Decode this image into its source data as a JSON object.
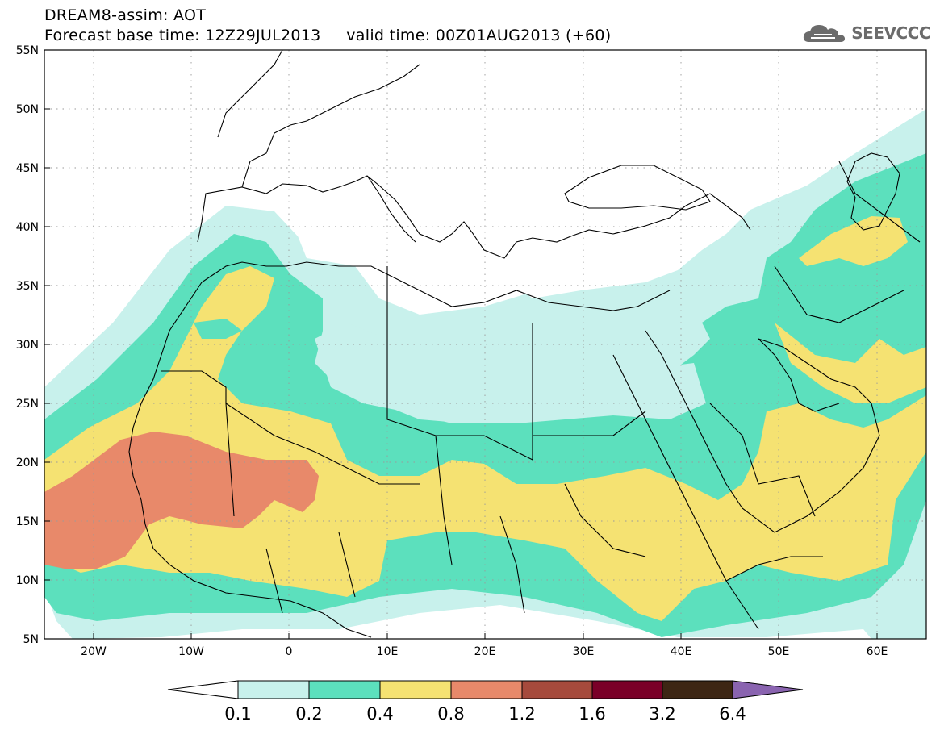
{
  "header": {
    "title_line1": "DREAM8-assim: AOT",
    "title_line2": "Forecast base time: 12Z29JUL2013     valid time: 00Z01AUG2013 (+60)",
    "logo_text": "SEEVCCC"
  },
  "map": {
    "lon_range": [
      -25,
      65
    ],
    "lat_range": [
      5,
      55
    ],
    "lat_labels": [
      "55N",
      "50N",
      "45N",
      "40N",
      "35N",
      "30N",
      "25N",
      "20N",
      "15N",
      "10N",
      "5N"
    ],
    "lon_labels": [
      "20W",
      "10W",
      "0",
      "10E",
      "20E",
      "30E",
      "40E",
      "50E",
      "60E"
    ],
    "field": "AOT"
  },
  "legend": {
    "levels": [
      "0.1",
      "0.2",
      "0.4",
      "0.8",
      "1.2",
      "1.6",
      "3.2",
      "6.4"
    ],
    "colors": [
      "#ffffff",
      "#c8f1ec",
      "#5ce0bd",
      "#f5e272",
      "#e8896a",
      "#a64a3c",
      "#7a0028",
      "#3d2614",
      "#8a64b0"
    ]
  }
}
